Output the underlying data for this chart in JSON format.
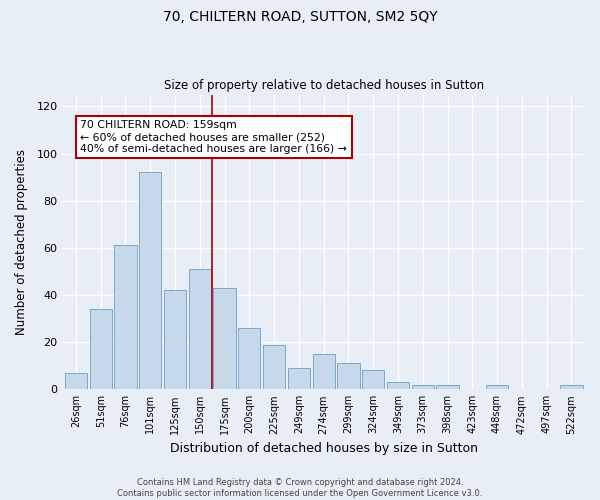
{
  "title": "70, CHILTERN ROAD, SUTTON, SM2 5QY",
  "subtitle": "Size of property relative to detached houses in Sutton",
  "xlabel": "Distribution of detached houses by size in Sutton",
  "ylabel": "Number of detached properties",
  "bar_labels": [
    "26sqm",
    "51sqm",
    "76sqm",
    "101sqm",
    "125sqm",
    "150sqm",
    "175sqm",
    "200sqm",
    "225sqm",
    "249sqm",
    "274sqm",
    "299sqm",
    "324sqm",
    "349sqm",
    "373sqm",
    "398sqm",
    "423sqm",
    "448sqm",
    "472sqm",
    "497sqm",
    "522sqm"
  ],
  "bar_values": [
    7,
    34,
    61,
    92,
    42,
    51,
    43,
    26,
    19,
    9,
    15,
    11,
    8,
    3,
    2,
    2,
    0,
    2,
    0,
    0,
    2
  ],
  "bar_color": "#c8d8eb",
  "bar_edge_color": "#7aaac8",
  "ylim": [
    0,
    125
  ],
  "yticks": [
    0,
    20,
    40,
    60,
    80,
    100,
    120
  ],
  "vline_x": 5.5,
  "vline_color": "#aa0000",
  "annotation_line1": "70 CHILTERN ROAD: 159sqm",
  "annotation_line2": "← 60% of detached houses are smaller (252)",
  "annotation_line3": "40% of semi-detached houses are larger (166) →",
  "annotation_box_color": "#ffffff",
  "annotation_box_edge": "#aa0000",
  "background_color": "#e8eef5",
  "footer_line1": "Contains HM Land Registry data © Crown copyright and database right 2024.",
  "footer_line2": "Contains public sector information licensed under the Open Government Licence v3.0."
}
